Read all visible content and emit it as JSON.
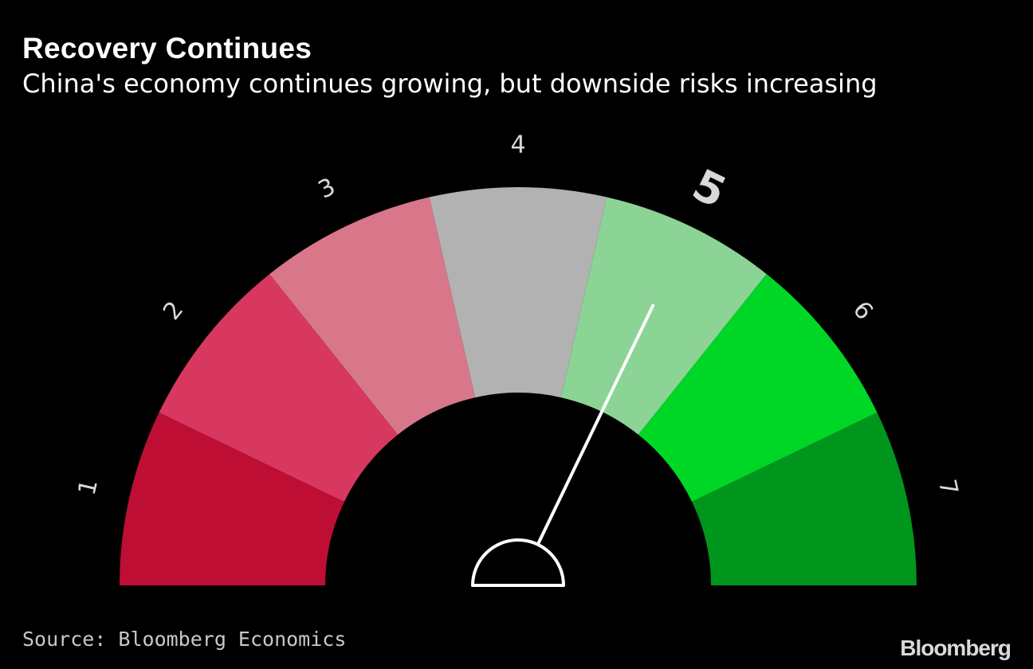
{
  "header": {
    "title": "Recovery Continues",
    "subtitle": "China's economy continues growing, but downside risks increasing"
  },
  "footer": {
    "source": "Source: Bloomberg Economics",
    "brand": "Bloomberg"
  },
  "chart_data": {
    "type": "gauge",
    "title": "Recovery Continues",
    "subtitle": "China's economy continues growing, but downside risks increasing",
    "segments": [
      {
        "label": "1",
        "color": "#be0e34"
      },
      {
        "label": "2",
        "color": "#d8385f"
      },
      {
        "label": "3",
        "color": "#d8778a"
      },
      {
        "label": "4",
        "color": "#b2b2b2"
      },
      {
        "label": "5",
        "color": "#8bd495"
      },
      {
        "label": "6",
        "color": "#00d626"
      },
      {
        "label": "7",
        "color": "#00951c"
      }
    ],
    "scale_min": 1,
    "scale_max": 7,
    "current_value": 5,
    "highlighted_label": "5",
    "needle_color": "#ffffff",
    "tick_label_color": "#d9d9d9"
  }
}
